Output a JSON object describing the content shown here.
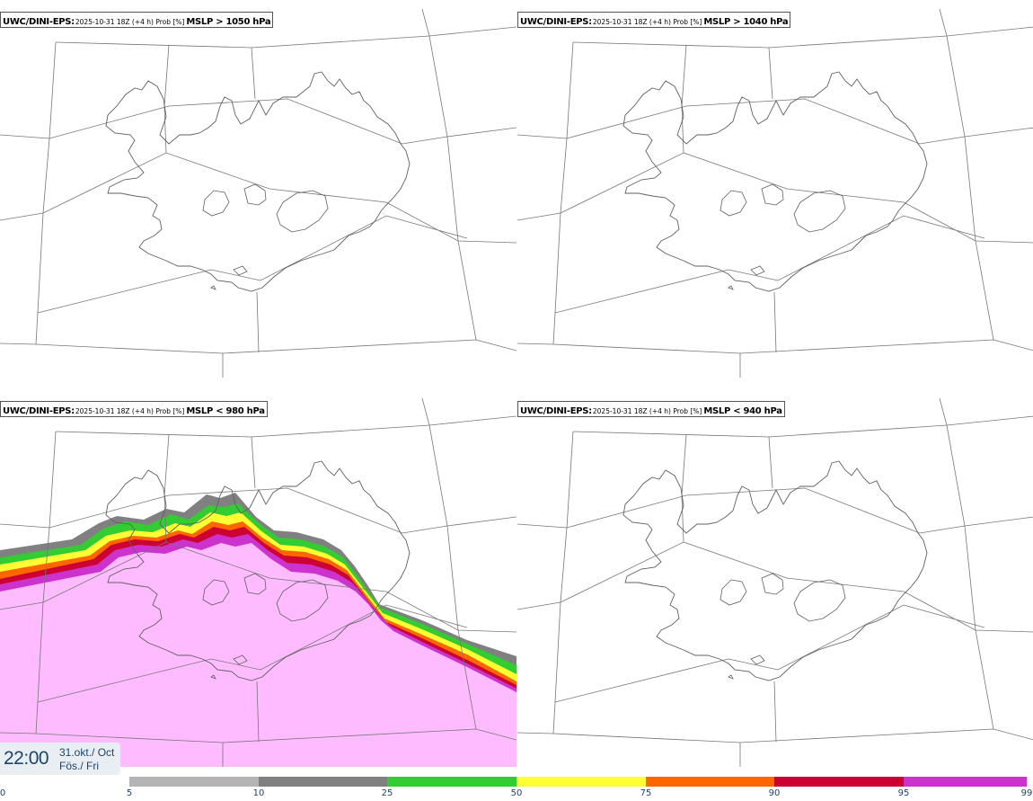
{
  "panels": [
    {
      "model": "UWC/DINI-EPS:",
      "meta": "2025-10-31 18Z (+4 h) Prob [%]",
      "condition": "MSLP > 1050 hPa",
      "probability_field": "none"
    },
    {
      "model": "UWC/DINI-EPS:",
      "meta": "2025-10-31 18Z (+4 h) Prob [%]",
      "condition": "MSLP > 1040 hPa",
      "probability_field": "none"
    },
    {
      "model": "UWC/DINI-EPS:",
      "meta": "2025-10-31 18Z (+4 h) Prob [%]",
      "condition": "MSLP < 980 hPa",
      "probability_field": "high over western and southern Iceland and surrounding sea, gradient along the north-east"
    },
    {
      "model": "UWC/DINI-EPS:",
      "meta": "2025-10-31 18Z (+4 h) Prob [%]",
      "condition": "MSLP < 940 hPa",
      "probability_field": "none"
    }
  ],
  "time": {
    "time": "22:00",
    "date_line1": "31.okt./ Oct",
    "date_line2": "Fös./ Fri"
  },
  "colorbar": {
    "ticks": [
      "0",
      "5",
      "10",
      "25",
      "50",
      "75",
      "90",
      "95",
      "99"
    ],
    "colors": [
      "#ffffff",
      "#b4b4b4",
      "#808080",
      "#33cc33",
      "#ffff33",
      "#ff6600",
      "#cc0033",
      "#cc33cc",
      "#ffbbff"
    ]
  },
  "map": {
    "region": "Iceland",
    "coast_color": "#606060",
    "grid_color": "#707070"
  }
}
